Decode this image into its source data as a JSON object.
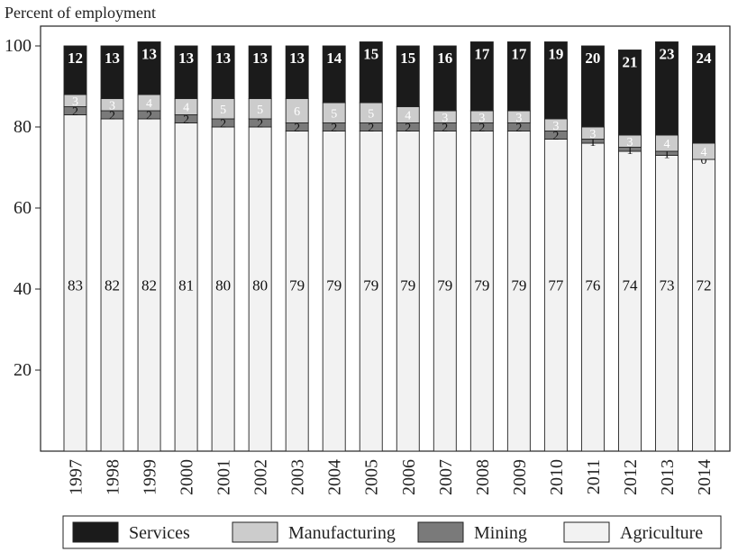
{
  "chart_data": {
    "type": "bar",
    "stacked": true,
    "ylabel": "Percent of employment",
    "ylim": [
      0,
      105
    ],
    "yticks": [
      "20",
      "40",
      "60",
      "80",
      "100"
    ],
    "legend_position": "bottom",
    "categories": [
      "1997",
      "1998",
      "1999",
      "2000",
      "2001",
      "2002",
      "2003",
      "2004",
      "2005",
      "2006",
      "2007",
      "2008",
      "2009",
      "2010",
      "2011",
      "2012",
      "2013",
      "2014"
    ],
    "series": [
      {
        "name": "Agriculture",
        "color": "#f2f2f2",
        "label_color": "#111111",
        "values": [
          83,
          82,
          82,
          81,
          80,
          80,
          79,
          79,
          79,
          79,
          79,
          79,
          79,
          77,
          76,
          74,
          73,
          72
        ]
      },
      {
        "name": "Mining",
        "color": "#7a7a7a",
        "label_color": "#111111",
        "values": [
          2,
          2,
          2,
          2,
          2,
          2,
          2,
          2,
          2,
          2,
          2,
          2,
          2,
          2,
          1,
          1,
          1,
          0
        ]
      },
      {
        "name": "Manufacturing",
        "color": "#cccccc",
        "label_color": "#ffffff",
        "values": [
          3,
          3,
          4,
          4,
          5,
          5,
          6,
          5,
          5,
          4,
          3,
          3,
          3,
          3,
          3,
          3,
          4,
          4
        ]
      },
      {
        "name": "Services",
        "color": "#1b1b1b",
        "label_color": "#ffffff",
        "values": [
          12,
          13,
          13,
          13,
          13,
          13,
          13,
          14,
          15,
          15,
          16,
          17,
          17,
          19,
          20,
          21,
          23,
          24
        ]
      }
    ],
    "legend_order": [
      "Services",
      "Manufacturing",
      "Mining",
      "Agriculture"
    ]
  }
}
